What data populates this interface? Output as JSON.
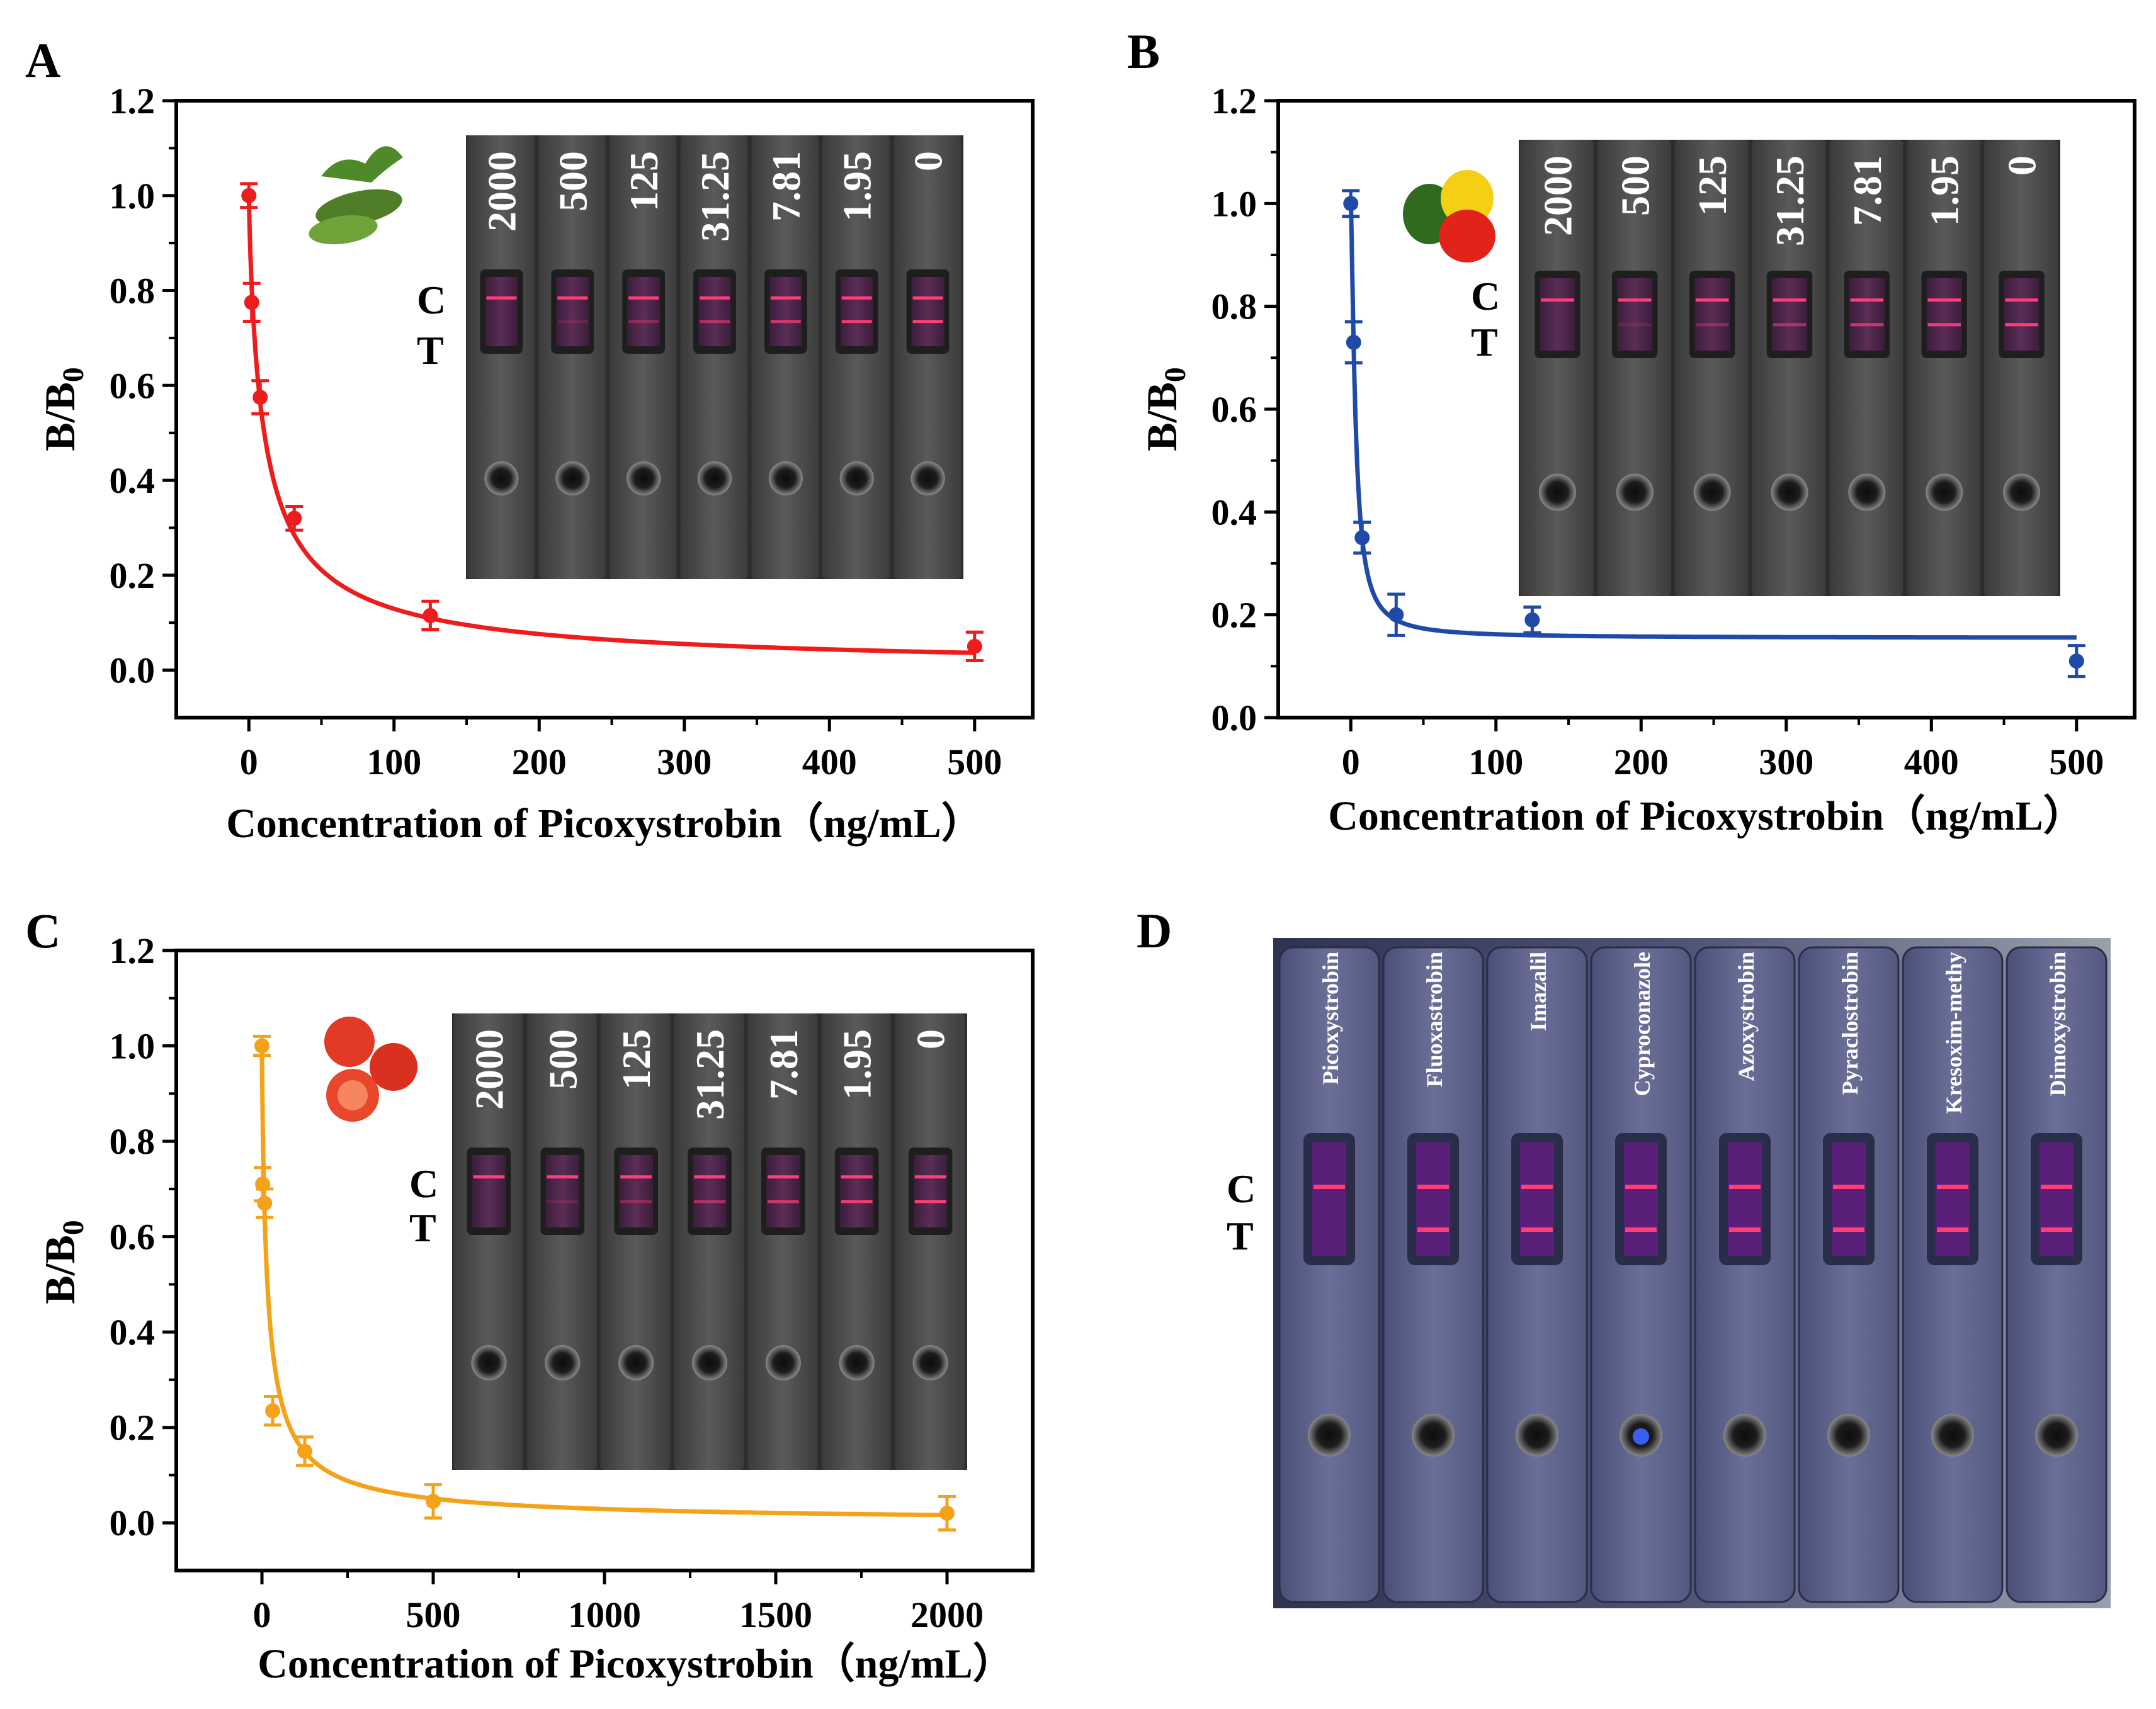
{
  "chart_data": [
    {
      "panel": "A",
      "type": "scatter",
      "panel_label": "A",
      "title": "",
      "xlabel": "Concentration of Picoxystrobin（ng/mL）",
      "ylabel_main": "B/B",
      "ylabel_sub": "0",
      "xlim": [
        -50,
        540
      ],
      "ylim": [
        -0.1,
        1.2
      ],
      "x_ticks": [
        0,
        100,
        200,
        300,
        400,
        500
      ],
      "x_tick_labels": [
        "0",
        "100",
        "200",
        "300",
        "400",
        "500"
      ],
      "y_ticks": [
        0.0,
        0.2,
        0.4,
        0.6,
        0.8,
        1.0,
        1.2
      ],
      "y_tick_labels": [
        "0.0",
        "0.2",
        "0.4",
        "0.6",
        "0.8",
        "1.0",
        "1.2"
      ],
      "color": "#ee1c1c",
      "series": [
        {
          "name": "Cucumber",
          "x": [
            0,
            1.95,
            7.81,
            31.25,
            125,
            500
          ],
          "y": [
            1.0,
            0.775,
            0.575,
            0.32,
            0.115,
            0.05
          ],
          "err": [
            0.025,
            0.04,
            0.035,
            0.025,
            0.03,
            0.03
          ]
        }
      ],
      "fit": {
        "top": 1.0,
        "bottom": 0.0,
        "ic50": 10.6,
        "hill": 0.85
      },
      "legend": "none",
      "inset": {
        "strip_labels": [
          "2000",
          "500",
          "125",
          "31.25",
          "7.81",
          "1.95",
          "0"
        ],
        "c_label": "C",
        "t_label": "T",
        "produce": "cucumber"
      }
    },
    {
      "panel": "B",
      "type": "scatter",
      "panel_label": "B",
      "title": "",
      "xlabel": "Concentration of Picoxystrobin（ng/mL）",
      "ylabel_main": "B/B",
      "ylabel_sub": "0",
      "xlim": [
        -50,
        540
      ],
      "ylim": [
        0.0,
        1.2
      ],
      "x_ticks": [
        0,
        100,
        200,
        300,
        400,
        500
      ],
      "x_tick_labels": [
        "0",
        "100",
        "200",
        "300",
        "400",
        "500"
      ],
      "y_ticks": [
        0.0,
        0.2,
        0.4,
        0.6,
        0.8,
        1.0,
        1.2
      ],
      "y_tick_labels": [
        "0.0",
        "0.2",
        "0.4",
        "0.6",
        "0.8",
        "1.0",
        "1.2"
      ],
      "color": "#1f4aa8",
      "series": [
        {
          "name": "Pepper",
          "x": [
            0,
            1.95,
            7.81,
            31.25,
            125,
            500
          ],
          "y": [
            1.0,
            0.73,
            0.35,
            0.2,
            0.19,
            0.11
          ],
          "err": [
            0.025,
            0.04,
            0.03,
            0.04,
            0.025,
            0.03
          ]
        }
      ],
      "fit": {
        "top": 1.0,
        "bottom": 0.155,
        "ic50": 3.3,
        "hill": 1.4
      },
      "legend": "none",
      "inset": {
        "strip_labels": [
          "2000",
          "500",
          "125",
          "31.25",
          "7.81",
          "1.95",
          "0"
        ],
        "c_label": "C",
        "t_label": "T",
        "produce": "peppers"
      }
    },
    {
      "panel": "C",
      "type": "scatter",
      "panel_label": "C",
      "title": "",
      "xlabel": "Concentration of Picoxystrobin（ng/mL）",
      "ylabel_main": "B/B",
      "ylabel_sub": "0",
      "xlim": [
        -250,
        2250
      ],
      "ylim": [
        -0.1,
        1.2
      ],
      "x_ticks": [
        0,
        500,
        1000,
        1500,
        2000
      ],
      "x_tick_labels": [
        "0",
        "500",
        "1000",
        "1500",
        "2000"
      ],
      "y_ticks": [
        0.0,
        0.2,
        0.4,
        0.6,
        0.8,
        1.0,
        1.2
      ],
      "y_tick_labels": [
        "0.0",
        "0.2",
        "0.4",
        "0.6",
        "0.8",
        "1.0",
        "1.2"
      ],
      "color": "#f5a21b",
      "series": [
        {
          "name": "Tomato",
          "x": [
            0,
            1.95,
            7.81,
            31.25,
            125,
            500,
            2000
          ],
          "y": [
            1.0,
            0.71,
            0.67,
            0.235,
            0.15,
            0.045,
            0.02
          ],
          "err": [
            0.02,
            0.035,
            0.03,
            0.03,
            0.03,
            0.035,
            0.035
          ]
        }
      ],
      "fit": {
        "top": 1.0,
        "bottom": 0.0,
        "ic50": 16,
        "hill": 0.85
      },
      "legend": "none",
      "inset": {
        "strip_labels": [
          "2000",
          "500",
          "125",
          "31.25",
          "7.81",
          "1.95",
          "0"
        ],
        "c_label": "C",
        "t_label": "T",
        "produce": "tomatoes"
      }
    }
  ],
  "panel_d": {
    "panel_label": "D",
    "c_label": "C",
    "t_label": "T",
    "strip_labels": [
      "Picoxystrobin",
      "Fluoxastrobin",
      "Imazalil",
      "Cyproconazole",
      "Azoxystrobin",
      "Pyraclostrobin",
      "Kresoxim-methy",
      "Dimoxystrobin"
    ]
  }
}
